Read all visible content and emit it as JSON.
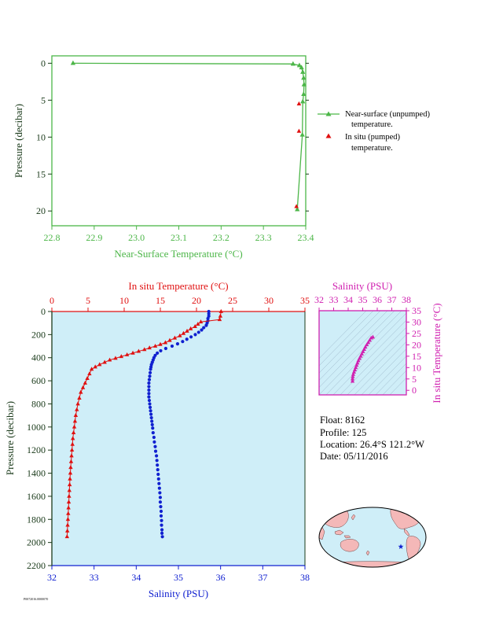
{
  "colors": {
    "green": "#4cb648",
    "red": "#e01010",
    "blue": "#1020d0",
    "magenta": "#d020b0",
    "axis_dark": "#1a3a1a",
    "plot_bg": "#cfeef8",
    "land": "#f4b8b8",
    "ocean": "#cfeef8"
  },
  "top_chart": {
    "type": "line",
    "xlabel": "Near-Surface Temperature (°C)",
    "ylabel": "Pressure (decibar)",
    "xlim": [
      22.8,
      23.4
    ],
    "ylim": [
      22,
      -1
    ],
    "x_ticks": [
      "22.8",
      "22.9",
      "23.0",
      "23.1",
      "23.2",
      "23.3",
      "23.4"
    ],
    "y_ticks": [
      "0",
      "5",
      "10",
      "15",
      "20"
    ],
    "legend": {
      "near_surface_line1": "Near-surface (unpumped)",
      "near_surface_line2": "temperature.",
      "insitu_line1": "In situ (pumped)",
      "insitu_line2": "temperature."
    },
    "series": [
      {
        "name": "Near-surface (unpumped) temperature.",
        "points": [
          [
            22.85,
            0.0
          ],
          [
            23.37,
            0.1
          ],
          [
            23.385,
            0.3
          ],
          [
            23.39,
            0.6
          ],
          [
            23.393,
            1.2
          ],
          [
            23.395,
            2.0
          ],
          [
            23.396,
            2.9
          ],
          [
            23.395,
            4.2
          ],
          [
            23.393,
            5.2
          ],
          [
            23.392,
            9.7
          ],
          [
            23.38,
            19.8
          ]
        ]
      },
      {
        "name": "In situ (pumped) temperature.",
        "points": [
          [
            23.384,
            5.5
          ],
          [
            23.384,
            9.2
          ],
          [
            23.378,
            19.4
          ]
        ]
      }
    ]
  },
  "bottom_chart": {
    "type": "scatter",
    "top_axis_label": "In situ Temperature (°C)",
    "bottom_axis_label": "Salinity (PSU)",
    "ylabel": "Pressure (decibar)",
    "temp_lim": [
      0,
      35
    ],
    "sal_lim": [
      32,
      38
    ],
    "ylim": [
      2200,
      0
    ],
    "temp_ticks": [
      "0",
      "5",
      "10",
      "15",
      "20",
      "25",
      "30",
      "35"
    ],
    "sal_ticks": [
      "32",
      "33",
      "34",
      "35",
      "36",
      "37",
      "38"
    ],
    "y_ticks": [
      "0",
      "200",
      "400",
      "600",
      "800",
      "1000",
      "1200",
      "1400",
      "1600",
      "1800",
      "2000",
      "2200"
    ],
    "temperature": [
      [
        23.4,
        0
      ],
      [
        23.3,
        40
      ],
      [
        23.2,
        70
      ],
      [
        20.6,
        90
      ],
      [
        20.2,
        110
      ],
      [
        19.8,
        130
      ],
      [
        19.2,
        150
      ],
      [
        18.7,
        170
      ],
      [
        18.2,
        190
      ],
      [
        17.7,
        210
      ],
      [
        17.0,
        230
      ],
      [
        16.3,
        250
      ],
      [
        15.7,
        270
      ],
      [
        15.0,
        285
      ],
      [
        14.3,
        300
      ],
      [
        13.5,
        315
      ],
      [
        12.8,
        330
      ],
      [
        12.0,
        345
      ],
      [
        11.2,
        360
      ],
      [
        10.4,
        375
      ],
      [
        9.6,
        390
      ],
      [
        8.8,
        405
      ],
      [
        8.0,
        420
      ],
      [
        7.3,
        440
      ],
      [
        6.6,
        460
      ],
      [
        6.0,
        480
      ],
      [
        5.5,
        500
      ],
      [
        5.2,
        540
      ],
      [
        4.9,
        580
      ],
      [
        4.6,
        620
      ],
      [
        4.3,
        660
      ],
      [
        4.0,
        700
      ],
      [
        3.8,
        750
      ],
      [
        3.6,
        800
      ],
      [
        3.45,
        850
      ],
      [
        3.3,
        900
      ],
      [
        3.2,
        950
      ],
      [
        3.1,
        1000
      ],
      [
        3.0,
        1050
      ],
      [
        2.9,
        1100
      ],
      [
        2.85,
        1150
      ],
      [
        2.78,
        1200
      ],
      [
        2.72,
        1250
      ],
      [
        2.66,
        1300
      ],
      [
        2.6,
        1350
      ],
      [
        2.55,
        1400
      ],
      [
        2.5,
        1450
      ],
      [
        2.46,
        1500
      ],
      [
        2.42,
        1550
      ],
      [
        2.38,
        1600
      ],
      [
        2.34,
        1650
      ],
      [
        2.3,
        1700
      ],
      [
        2.26,
        1750
      ],
      [
        2.22,
        1800
      ],
      [
        2.18,
        1850
      ],
      [
        2.14,
        1900
      ],
      [
        2.1,
        1950
      ]
    ],
    "salinity": [
      [
        35.72,
        0
      ],
      [
        35.72,
        20
      ],
      [
        35.72,
        40
      ],
      [
        35.7,
        60
      ],
      [
        35.7,
        80
      ],
      [
        35.68,
        100
      ],
      [
        35.66,
        120
      ],
      [
        35.6,
        140
      ],
      [
        35.55,
        160
      ],
      [
        35.48,
        180
      ],
      [
        35.4,
        200
      ],
      [
        35.3,
        220
      ],
      [
        35.2,
        240
      ],
      [
        35.1,
        260
      ],
      [
        34.98,
        280
      ],
      [
        34.85,
        300
      ],
      [
        34.7,
        320
      ],
      [
        34.58,
        340
      ],
      [
        34.5,
        360
      ],
      [
        34.45,
        380
      ],
      [
        34.42,
        400
      ],
      [
        34.4,
        420
      ],
      [
        34.38,
        440
      ],
      [
        34.36,
        460
      ],
      [
        34.35,
        480
      ],
      [
        34.34,
        500
      ],
      [
        34.33,
        530
      ],
      [
        34.32,
        560
      ],
      [
        34.31,
        590
      ],
      [
        34.3,
        620
      ],
      [
        34.3,
        650
      ],
      [
        34.3,
        680
      ],
      [
        34.3,
        710
      ],
      [
        34.3,
        740
      ],
      [
        34.31,
        770
      ],
      [
        34.32,
        800
      ],
      [
        34.33,
        830
      ],
      [
        34.34,
        860
      ],
      [
        34.35,
        890
      ],
      [
        34.36,
        920
      ],
      [
        34.37,
        950
      ],
      [
        34.38,
        980
      ],
      [
        34.39,
        1010
      ],
      [
        34.4,
        1050
      ],
      [
        34.42,
        1090
      ],
      [
        34.43,
        1130
      ],
      [
        34.45,
        1170
      ],
      [
        34.46,
        1210
      ],
      [
        34.48,
        1250
      ],
      [
        34.49,
        1290
      ],
      [
        34.5,
        1330
      ],
      [
        34.51,
        1370
      ],
      [
        34.52,
        1410
      ],
      [
        34.53,
        1450
      ],
      [
        34.54,
        1490
      ],
      [
        34.55,
        1530
      ],
      [
        34.56,
        1570
      ],
      [
        34.57,
        1610
      ],
      [
        34.57,
        1650
      ],
      [
        34.58,
        1690
      ],
      [
        34.59,
        1730
      ],
      [
        34.59,
        1770
      ],
      [
        34.6,
        1810
      ],
      [
        34.6,
        1850
      ],
      [
        34.61,
        1890
      ],
      [
        34.61,
        1920
      ],
      [
        34.62,
        1950
      ]
    ]
  },
  "ts_inset": {
    "type": "scatter",
    "top_axis_label": "Salinity (PSU)",
    "right_axis_label": "In situ Temperature (°C)",
    "sal_lim": [
      32,
      38
    ],
    "temp_lim": [
      -2,
      35
    ],
    "sal_ticks": [
      "32",
      "33",
      "34",
      "35",
      "36",
      "37",
      "38"
    ],
    "temp_ticks": [
      "0",
      "5",
      "10",
      "15",
      "20",
      "25",
      "30",
      "35"
    ],
    "points": [
      [
        34.3,
        4
      ],
      [
        34.3,
        5
      ],
      [
        34.32,
        6
      ],
      [
        34.35,
        7
      ],
      [
        34.4,
        8
      ],
      [
        34.46,
        9
      ],
      [
        34.52,
        10
      ],
      [
        34.58,
        11
      ],
      [
        34.64,
        12
      ],
      [
        34.7,
        13
      ],
      [
        34.78,
        14
      ],
      [
        34.86,
        15
      ],
      [
        34.94,
        16
      ],
      [
        35.02,
        17
      ],
      [
        35.1,
        18
      ],
      [
        35.18,
        19
      ],
      [
        35.28,
        20
      ],
      [
        35.38,
        21
      ],
      [
        35.48,
        22
      ],
      [
        35.58,
        23
      ],
      [
        35.7,
        23.4
      ]
    ]
  },
  "info": {
    "float": "Float:  8162",
    "profile": "Profile:  125",
    "location": "Location:  26.4°S  121.2°W",
    "date": "Date:  05/11/2016"
  },
  "map": {
    "marker_icon": "star-icon"
  },
  "footer": {
    "code": "P0072016.0000070"
  }
}
